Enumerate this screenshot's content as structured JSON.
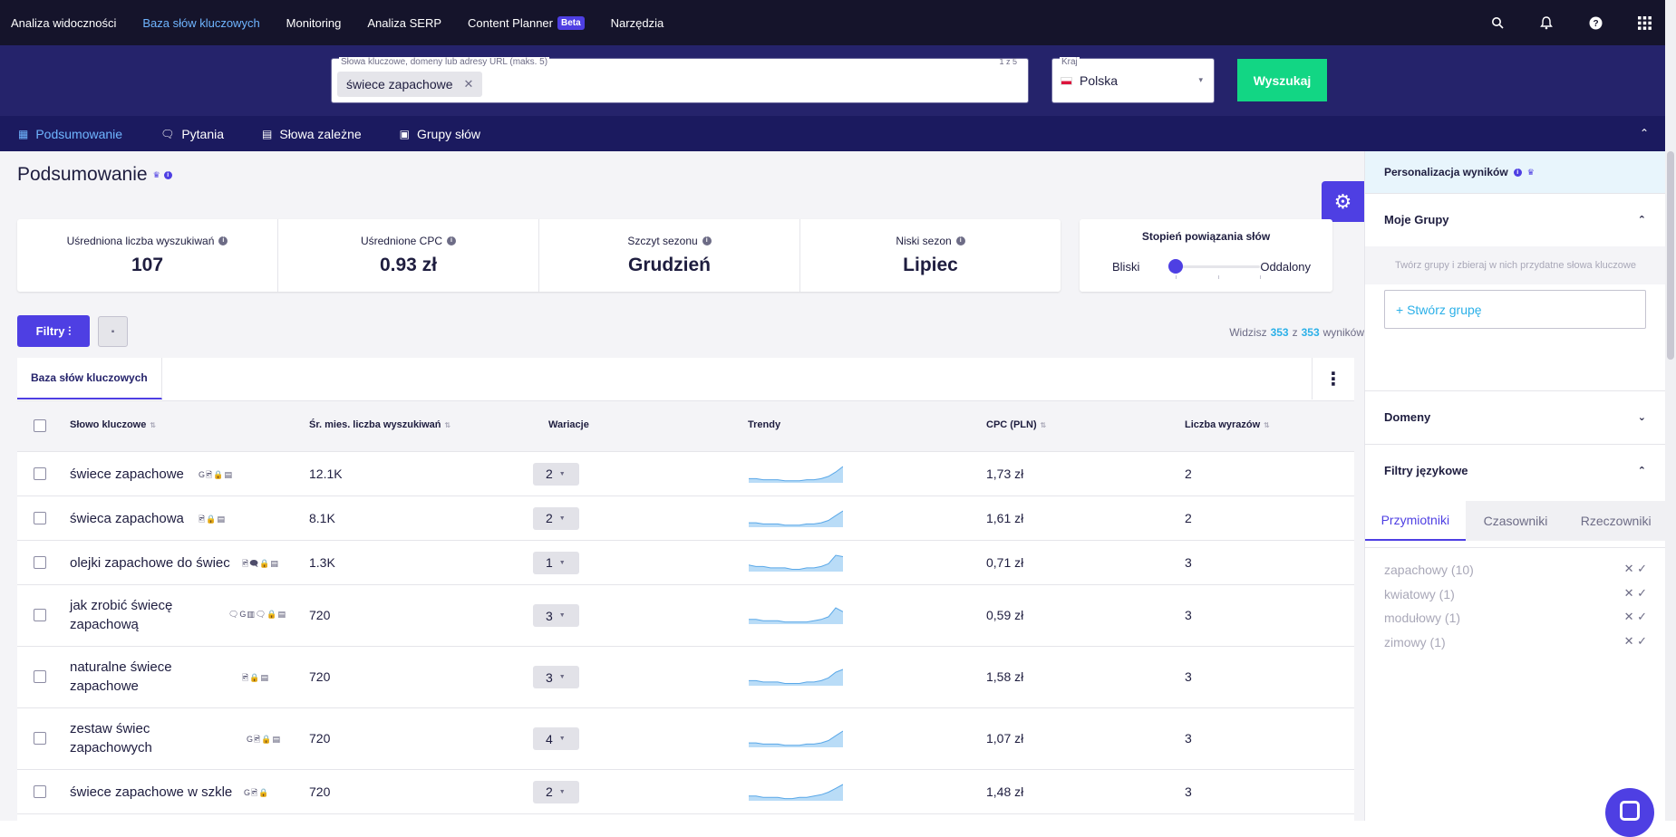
{
  "nav": {
    "items": [
      "Analiza widoczności",
      "Baza słów kluczowych",
      "Monitoring",
      "Analiza SERP",
      "Content Planner",
      "Narzędzia"
    ],
    "active_index": 1,
    "beta_label": "Beta"
  },
  "search": {
    "keywords_label": "Słowa kluczowe, domeny lub adresy URL (maks. 5)",
    "keywords_count": "1 z 5",
    "chip": "świece zapachowe",
    "country_label": "Kraj",
    "country_value": "Polska",
    "submit_label": "Wyszukaj"
  },
  "subtabs": [
    "Podsumowanie",
    "Pytania",
    "Słowa zależne",
    "Grupy słów"
  ],
  "subtabs_active": 0,
  "page_title": "Podsumowanie",
  "stats": [
    {
      "label": "Uśredniona liczba wyszukiwań",
      "value": "107"
    },
    {
      "label": "Uśrednione CPC",
      "value": "0.93 zł"
    },
    {
      "label": "Szczyt sezonu",
      "value": "Grudzień"
    },
    {
      "label": "Niski sezon",
      "value": "Lipiec"
    }
  ],
  "relation": {
    "title": "Stopień powiązania słów",
    "left": "Bliski",
    "right": "Oddalony",
    "level": 0
  },
  "toolbar": {
    "filters_label": "Filtry"
  },
  "counter": {
    "prefix": "Widzisz",
    "shown": "353",
    "sep": "z",
    "total": "353",
    "suffix": "wyników"
  },
  "table": {
    "tab_label": "Baza słów kluczowych",
    "headers": [
      "Słowo kluczowe",
      "Śr. mies. liczba wyszukiwań",
      "Wariacje",
      "Trendy",
      "CPC (PLN)",
      "Liczba wyrazów"
    ],
    "rows": [
      {
        "keyword": "świece zapachowe",
        "volume": "12.1K",
        "variations": "2",
        "cpc": "1,73 zł",
        "words": "2",
        "serp": "G🖻🔒▤",
        "trend": [
          3,
          3,
          2,
          2,
          2,
          1,
          1,
          1,
          2,
          2,
          3,
          5,
          9,
          14
        ]
      },
      {
        "keyword": "świeca zapachowa",
        "volume": "8.1K",
        "variations": "2",
        "cpc": "1,61 zł",
        "words": "2",
        "serp": "🖻🔒▤",
        "trend": [
          3,
          3,
          2,
          2,
          2,
          1,
          1,
          1,
          2,
          2,
          3,
          5,
          9,
          13
        ]
      },
      {
        "keyword": "olejki zapachowe do świec",
        "volume": "1.3K",
        "variations": "1",
        "cpc": "0,71 zł",
        "words": "3",
        "serp": "🖻🗨🔒▤",
        "trend": [
          4,
          3,
          3,
          2,
          2,
          2,
          1,
          1,
          2,
          2,
          3,
          5,
          11,
          10
        ]
      },
      {
        "keyword": "jak zrobić świecę zapachową",
        "volume": "720",
        "variations": "3",
        "cpc": "0,59 zł",
        "words": "3",
        "serp": "🗨G▥🗨🔒▤",
        "trend": [
          3,
          3,
          2,
          2,
          2,
          1,
          1,
          1,
          1,
          2,
          3,
          5,
          12,
          9
        ]
      },
      {
        "keyword": "naturalne świece zapachowe",
        "volume": "720",
        "variations": "3",
        "cpc": "1,58 zł",
        "words": "3",
        "serp": "🖻🔒▤",
        "trend": [
          3,
          3,
          2,
          2,
          2,
          1,
          1,
          1,
          2,
          2,
          3,
          5,
          9,
          11
        ]
      },
      {
        "keyword": "zestaw świec zapachowych",
        "volume": "720",
        "variations": "4",
        "cpc": "1,07 zł",
        "words": "3",
        "serp": "G🖻🔒▤",
        "trend": [
          3,
          3,
          2,
          2,
          2,
          1,
          1,
          1,
          2,
          2,
          3,
          5,
          9,
          13
        ]
      },
      {
        "keyword": "świece zapachowe w szkle",
        "volume": "720",
        "variations": "2",
        "cpc": "1,48 zł",
        "words": "3",
        "serp": "G🖻🔒",
        "trend": [
          3,
          3,
          2,
          2,
          2,
          1,
          1,
          2,
          2,
          3,
          4,
          6,
          9,
          12
        ]
      }
    ]
  },
  "right_panel": {
    "title": "Personalizacja wyników",
    "groups_title": "Moje Grupy",
    "groups_hint": "Twórz grupy i zbieraj w nich przydatne słowa kluczowe",
    "new_group": "+ Stwórz grupę",
    "domains_title": "Domeny",
    "lang_title": "Filtry językowe",
    "lang_tabs": [
      "Przymiotniki",
      "Czasowniki",
      "Rzeczowniki"
    ],
    "lang_tabs_active": 0,
    "lang_items": [
      "zapachowy (10)",
      "kwiatowy (1)",
      "modułowy (1)",
      "zimowy (1)"
    ]
  },
  "colors": {
    "accent": "#4e3fe3",
    "brand_dark": "#15142b",
    "search_bg": "#25236b",
    "green": "#12d684",
    "link": "#2bb0e8",
    "trend_fill": "#b9dcf7",
    "trend_line": "#5aa8e8"
  }
}
